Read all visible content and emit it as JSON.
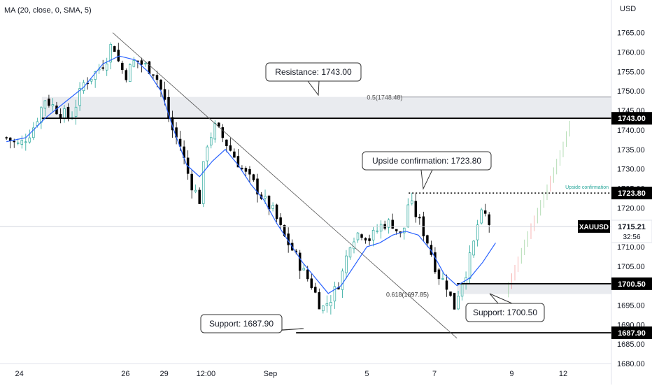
{
  "indicator_label": "MA (20, close, 0, SMA, 5)",
  "currency": "USD",
  "price_ticks": [
    "1765.00",
    "1760.00",
    "1755.00",
    "1750.00",
    "1745.00",
    "1740.00",
    "1735.00",
    "1730.00",
    "1725.00",
    "1720.00",
    "1715.00",
    "1710.00",
    "1705.00",
    "1700.00",
    "1695.00",
    "1690.00",
    "1685.00",
    "1680.00"
  ],
  "time_ticks": [
    {
      "label": "24",
      "t": 0.2
    },
    {
      "label": "26",
      "t": 1.85
    },
    {
      "label": "29",
      "t": 2.45
    },
    {
      "label": "12:00",
      "t": 3.1
    },
    {
      "label": "Sep",
      "t": 4.1
    },
    {
      "label": "5",
      "t": 5.6
    },
    {
      "label": "7",
      "t": 6.65
    },
    {
      "label": "9",
      "t": 7.85
    },
    {
      "label": "12",
      "t": 8.65
    }
  ],
  "price_labels": [
    {
      "text": "1743.00",
      "price": 1743.0,
      "style": "dark"
    },
    {
      "text": "1723.80",
      "price": 1723.8,
      "style": "dark"
    },
    {
      "text": "1700.50",
      "price": 1700.5,
      "style": "dark"
    },
    {
      "text": "1687.90",
      "price": 1687.9,
      "style": "dark"
    }
  ],
  "current_price": {
    "symbol": "XAUUSD",
    "price": 1715.21,
    "text": "1715.21",
    "countdown": "32:56"
  },
  "callouts": {
    "resistance": "Resistance: 1743.00",
    "upside": "Upside confirmation: 1723.80",
    "support_upper": "Support: 1700.50",
    "support_lower": "Support: 1687.90"
  },
  "annotations": {
    "fib_05": "0.5(1748.48)",
    "fib_0618": "0.618(1697.85)",
    "upside_small": "Upside confirmation"
  },
  "colors": {
    "up": "#26a69a",
    "down": "#000000",
    "ma": "#2962ff",
    "projection": "#4caf50",
    "projection_down": "#ef5350"
  },
  "chart_data": {
    "type": "candlestick",
    "symbol": "XAUUSD",
    "ylim": [
      1680,
      1768
    ],
    "levels": {
      "resistance": 1743.0,
      "upside_confirmation": 1723.8,
      "support_upper": 1700.5,
      "support_lower": 1687.9,
      "fib_05": 1748.48,
      "fib_0618": 1697.85
    },
    "resistance_zone": [
      1743.0,
      1748.48
    ],
    "support_zone": [
      1697.85,
      1700.5
    ],
    "close_path": [
      [
        0.0,
        1738
      ],
      [
        0.2,
        1736
      ],
      [
        0.4,
        1740
      ],
      [
        0.6,
        1748
      ],
      [
        0.8,
        1745
      ],
      [
        1.0,
        1743
      ],
      [
        1.2,
        1752
      ],
      [
        1.4,
        1755
      ],
      [
        1.55,
        1758
      ],
      [
        1.65,
        1763
      ],
      [
        1.75,
        1757
      ],
      [
        1.85,
        1754
      ],
      [
        2.0,
        1758
      ],
      [
        2.2,
        1756
      ],
      [
        2.3,
        1755
      ],
      [
        2.45,
        1748
      ],
      [
        2.55,
        1741
      ],
      [
        2.7,
        1736
      ],
      [
        2.85,
        1727
      ],
      [
        3.0,
        1722
      ],
      [
        3.1,
        1736
      ],
      [
        3.25,
        1741
      ],
      [
        3.4,
        1737
      ],
      [
        3.55,
        1733
      ],
      [
        3.7,
        1729
      ],
      [
        3.85,
        1726
      ],
      [
        4.0,
        1722
      ],
      [
        4.15,
        1719
      ],
      [
        4.3,
        1713
      ],
      [
        4.45,
        1709
      ],
      [
        4.6,
        1704
      ],
      [
        4.75,
        1700
      ],
      [
        4.9,
        1694
      ],
      [
        5.05,
        1697
      ],
      [
        5.2,
        1702
      ],
      [
        5.35,
        1712
      ],
      [
        5.5,
        1714
      ],
      [
        5.65,
        1712
      ],
      [
        5.85,
        1716
      ],
      [
        6.0,
        1716
      ],
      [
        6.15,
        1712
      ],
      [
        6.25,
        1722
      ],
      [
        6.4,
        1717
      ],
      [
        6.55,
        1711
      ],
      [
        6.7,
        1703
      ],
      [
        6.85,
        1700
      ],
      [
        6.95,
        1694
      ],
      [
        7.05,
        1700
      ],
      [
        7.15,
        1704
      ],
      [
        7.25,
        1710
      ],
      [
        7.35,
        1718
      ],
      [
        7.45,
        1718
      ],
      [
        7.5,
        1716
      ]
    ],
    "ma_path": [
      [
        0.0,
        1737
      ],
      [
        0.3,
        1738
      ],
      [
        0.6,
        1743
      ],
      [
        0.9,
        1747
      ],
      [
        1.2,
        1751
      ],
      [
        1.5,
        1757
      ],
      [
        1.75,
        1759
      ],
      [
        2.0,
        1758
      ],
      [
        2.2,
        1755
      ],
      [
        2.4,
        1750
      ],
      [
        2.6,
        1740
      ],
      [
        2.8,
        1731
      ],
      [
        3.0,
        1728
      ],
      [
        3.2,
        1732
      ],
      [
        3.4,
        1735
      ],
      [
        3.6,
        1731
      ],
      [
        3.8,
        1726
      ],
      [
        4.0,
        1722
      ],
      [
        4.2,
        1716
      ],
      [
        4.4,
        1711
      ],
      [
        4.6,
        1706
      ],
      [
        4.8,
        1702
      ],
      [
        5.0,
        1698
      ],
      [
        5.2,
        1700
      ],
      [
        5.4,
        1705
      ],
      [
        5.6,
        1710
      ],
      [
        5.8,
        1711
      ],
      [
        6.0,
        1713
      ],
      [
        6.2,
        1714
      ],
      [
        6.4,
        1713
      ],
      [
        6.6,
        1709
      ],
      [
        6.8,
        1703
      ],
      [
        7.0,
        1700
      ],
      [
        7.2,
        1702
      ],
      [
        7.4,
        1706
      ],
      [
        7.6,
        1711
      ]
    ],
    "projection_path": [
      [
        7.8,
        1699
      ],
      [
        8.1,
        1712
      ],
      [
        8.4,
        1724
      ],
      [
        8.65,
        1735
      ],
      [
        8.8,
        1743
      ]
    ]
  }
}
